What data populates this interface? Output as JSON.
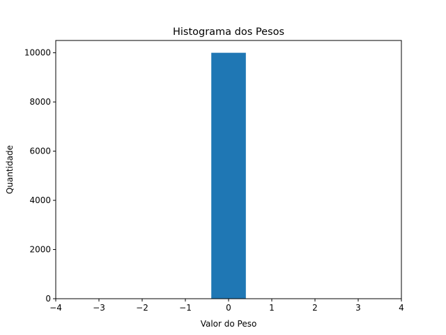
{
  "chart_data": {
    "type": "bar",
    "title": "Histograma dos Pesos",
    "xlabel": "Valor do Peso",
    "ylabel": "Quantidade",
    "xlim": [
      -4,
      4
    ],
    "ylim": [
      0,
      10500
    ],
    "xticks": [
      -4,
      -3,
      -2,
      -1,
      0,
      1,
      2,
      3,
      4
    ],
    "xtick_labels": [
      "−4",
      "−3",
      "−2",
      "−1",
      "0",
      "1",
      "2",
      "3",
      "4"
    ],
    "yticks": [
      0,
      2000,
      4000,
      6000,
      8000,
      10000
    ],
    "ytick_labels": [
      "0",
      "2000",
      "4000",
      "6000",
      "8000",
      "10000"
    ],
    "bins": [
      {
        "x0": -0.4,
        "x1": 0.4,
        "value": 10000
      }
    ],
    "grid": false,
    "bar_color": "#1f77b4"
  }
}
